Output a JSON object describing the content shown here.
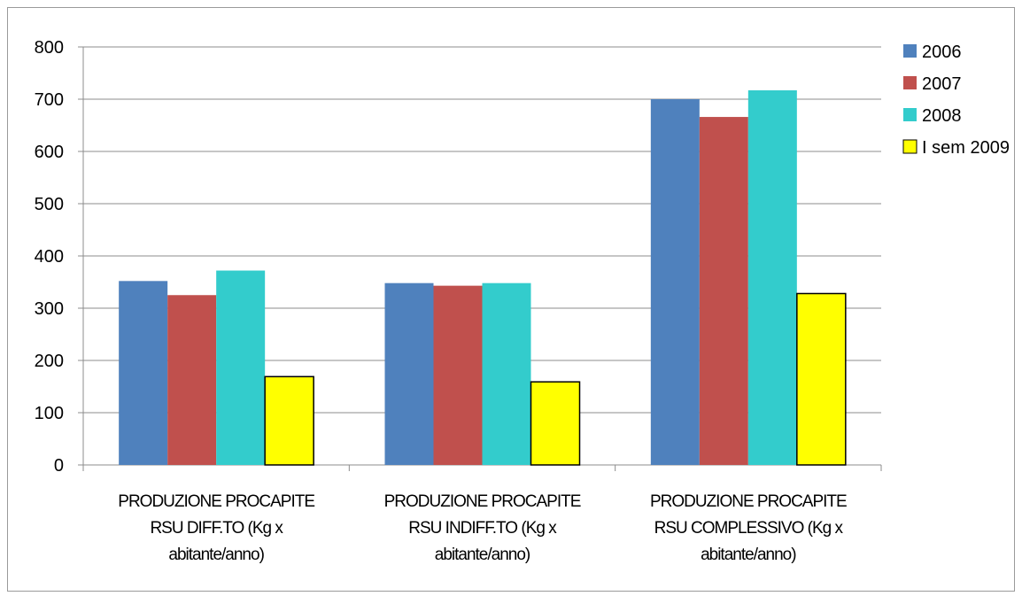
{
  "chart_data": {
    "type": "bar",
    "categories": [
      [
        "PRODUZIONE PROCAPITE",
        "RSU DIFF.TO (Kg x",
        "abitante/anno)"
      ],
      [
        "PRODUZIONE PROCAPITE",
        "RSU INDIFF.TO (Kg x",
        "abitante/anno)"
      ],
      [
        "PRODUZIONE PROCAPITE",
        "RSU COMPLESSIVO (Kg x",
        "abitante/anno)"
      ]
    ],
    "series": [
      {
        "name": "2006",
        "color": "#4f81bd",
        "values": [
          352,
          348,
          700
        ]
      },
      {
        "name": "2007",
        "color": "#c0504d",
        "values": [
          325,
          343,
          666
        ]
      },
      {
        "name": "2008",
        "color": "#33cccc",
        "values": [
          372,
          348,
          717
        ]
      },
      {
        "name": "I sem 2009",
        "color": "#ffff00",
        "values": [
          169,
          159,
          328
        ]
      }
    ],
    "yticks": [
      "0",
      "100",
      "200",
      "300",
      "400",
      "500",
      "600",
      "700",
      "800"
    ],
    "ylim": [
      0,
      800
    ],
    "grid": true,
    "legend_position": "right"
  }
}
